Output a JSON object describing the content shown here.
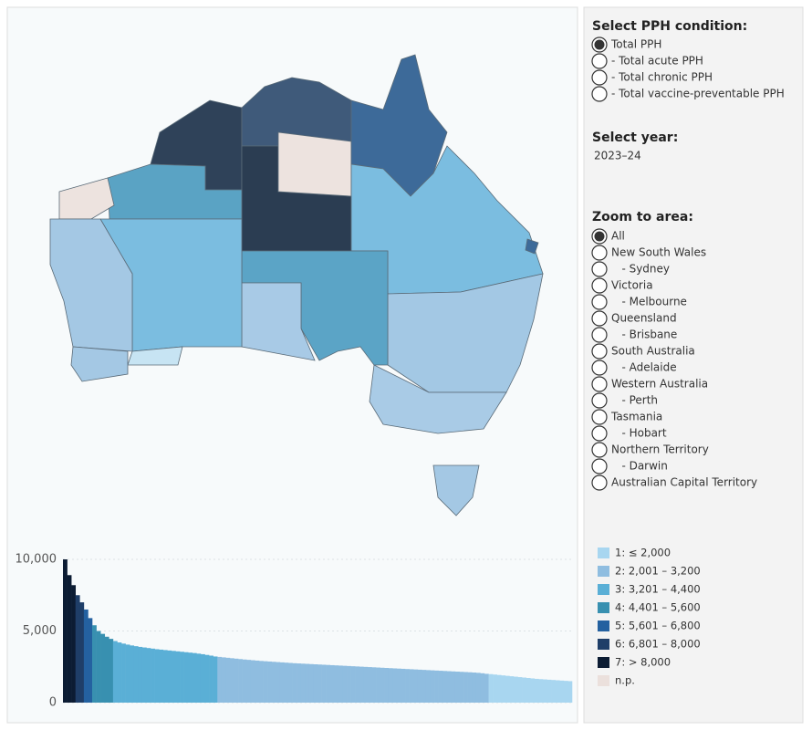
{
  "controls": {
    "condition": {
      "title": "Select PPH condition:",
      "options": [
        "Total PPH",
        "- Total acute PPH",
        "- Total chronic PPH",
        "- Total vaccine-preventable PPH"
      ],
      "selected": 0
    },
    "year": {
      "title": "Select year:",
      "value": "2023–24"
    },
    "area": {
      "title": "Zoom to area:",
      "options": [
        "All",
        "New South Wales",
        "   - Sydney",
        "Victoria",
        "   - Melbourne",
        "Queensland",
        "   - Brisbane",
        "South Australia",
        "   - Adelaide",
        "Western Australia",
        "   - Perth",
        "Tasmania",
        "   - Hobart",
        "Northern Territory",
        "   - Darwin",
        "Australian Capital Territory"
      ],
      "selected": 0
    }
  },
  "chart_data": {
    "type": "bar",
    "grid": true,
    "ylim": [
      0,
      10000
    ],
    "yticks": [
      {
        "value": 0,
        "label": "0"
      },
      {
        "value": 5000,
        "label": "5,000"
      },
      {
        "value": 10000,
        "label": "10,000"
      }
    ],
    "series": [
      {
        "name": "1: ≤ 2,000",
        "color": "#a8d6f0",
        "values": [
          1990,
          1960,
          1930,
          1900,
          1870,
          1840,
          1810,
          1780,
          1750,
          1720,
          1690,
          1660,
          1640,
          1620,
          1600,
          1580,
          1560,
          1540,
          1520,
          1500
        ]
      },
      {
        "name": "2: 2,001 – 3,200",
        "color": "#8fbde0",
        "values": [
          3190,
          3160,
          3130,
          3100,
          3070,
          3040,
          3010,
          2985,
          2960,
          2935,
          2910,
          2890,
          2870,
          2850,
          2830,
          2810,
          2790,
          2770,
          2750,
          2735,
          2720,
          2705,
          2690,
          2675,
          2660,
          2645,
          2630,
          2615,
          2600,
          2585,
          2570,
          2555,
          2540,
          2525,
          2510,
          2495,
          2480,
          2465,
          2450,
          2435,
          2420,
          2405,
          2390,
          2375,
          2360,
          2345,
          2330,
          2315,
          2300,
          2285,
          2270,
          2255,
          2240,
          2225,
          2210,
          2195,
          2180,
          2165,
          2150,
          2135,
          2120,
          2100,
          2080,
          2050,
          2010
        ]
      },
      {
        "name": "3: 3,201 – 4,400",
        "color": "#5aafd6",
        "values": [
          4300,
          4200,
          4120,
          4050,
          3990,
          3940,
          3890,
          3850,
          3810,
          3770,
          3730,
          3700,
          3670,
          3640,
          3610,
          3580,
          3550,
          3520,
          3490,
          3460,
          3420,
          3380,
          3330,
          3280,
          3220
        ]
      },
      {
        "name": "4: 4,401 – 5,600",
        "color": "#3890b0",
        "values": [
          5400,
          5000,
          4800,
          4600,
          4450
        ]
      },
      {
        "name": "5: 5,601 – 6,800",
        "color": "#2461a0",
        "values": [
          6500,
          5900
        ]
      },
      {
        "name": "6: 6,801 – 8,000",
        "color": "#1f3e68",
        "values": [
          7500,
          7000
        ]
      },
      {
        "name": "7: > 8,000",
        "color": "#0c1c33",
        "values": [
          10000,
          8900,
          8200
        ]
      },
      {
        "name": "n.p.",
        "color": "#ebe0dc",
        "values": []
      }
    ]
  }
}
